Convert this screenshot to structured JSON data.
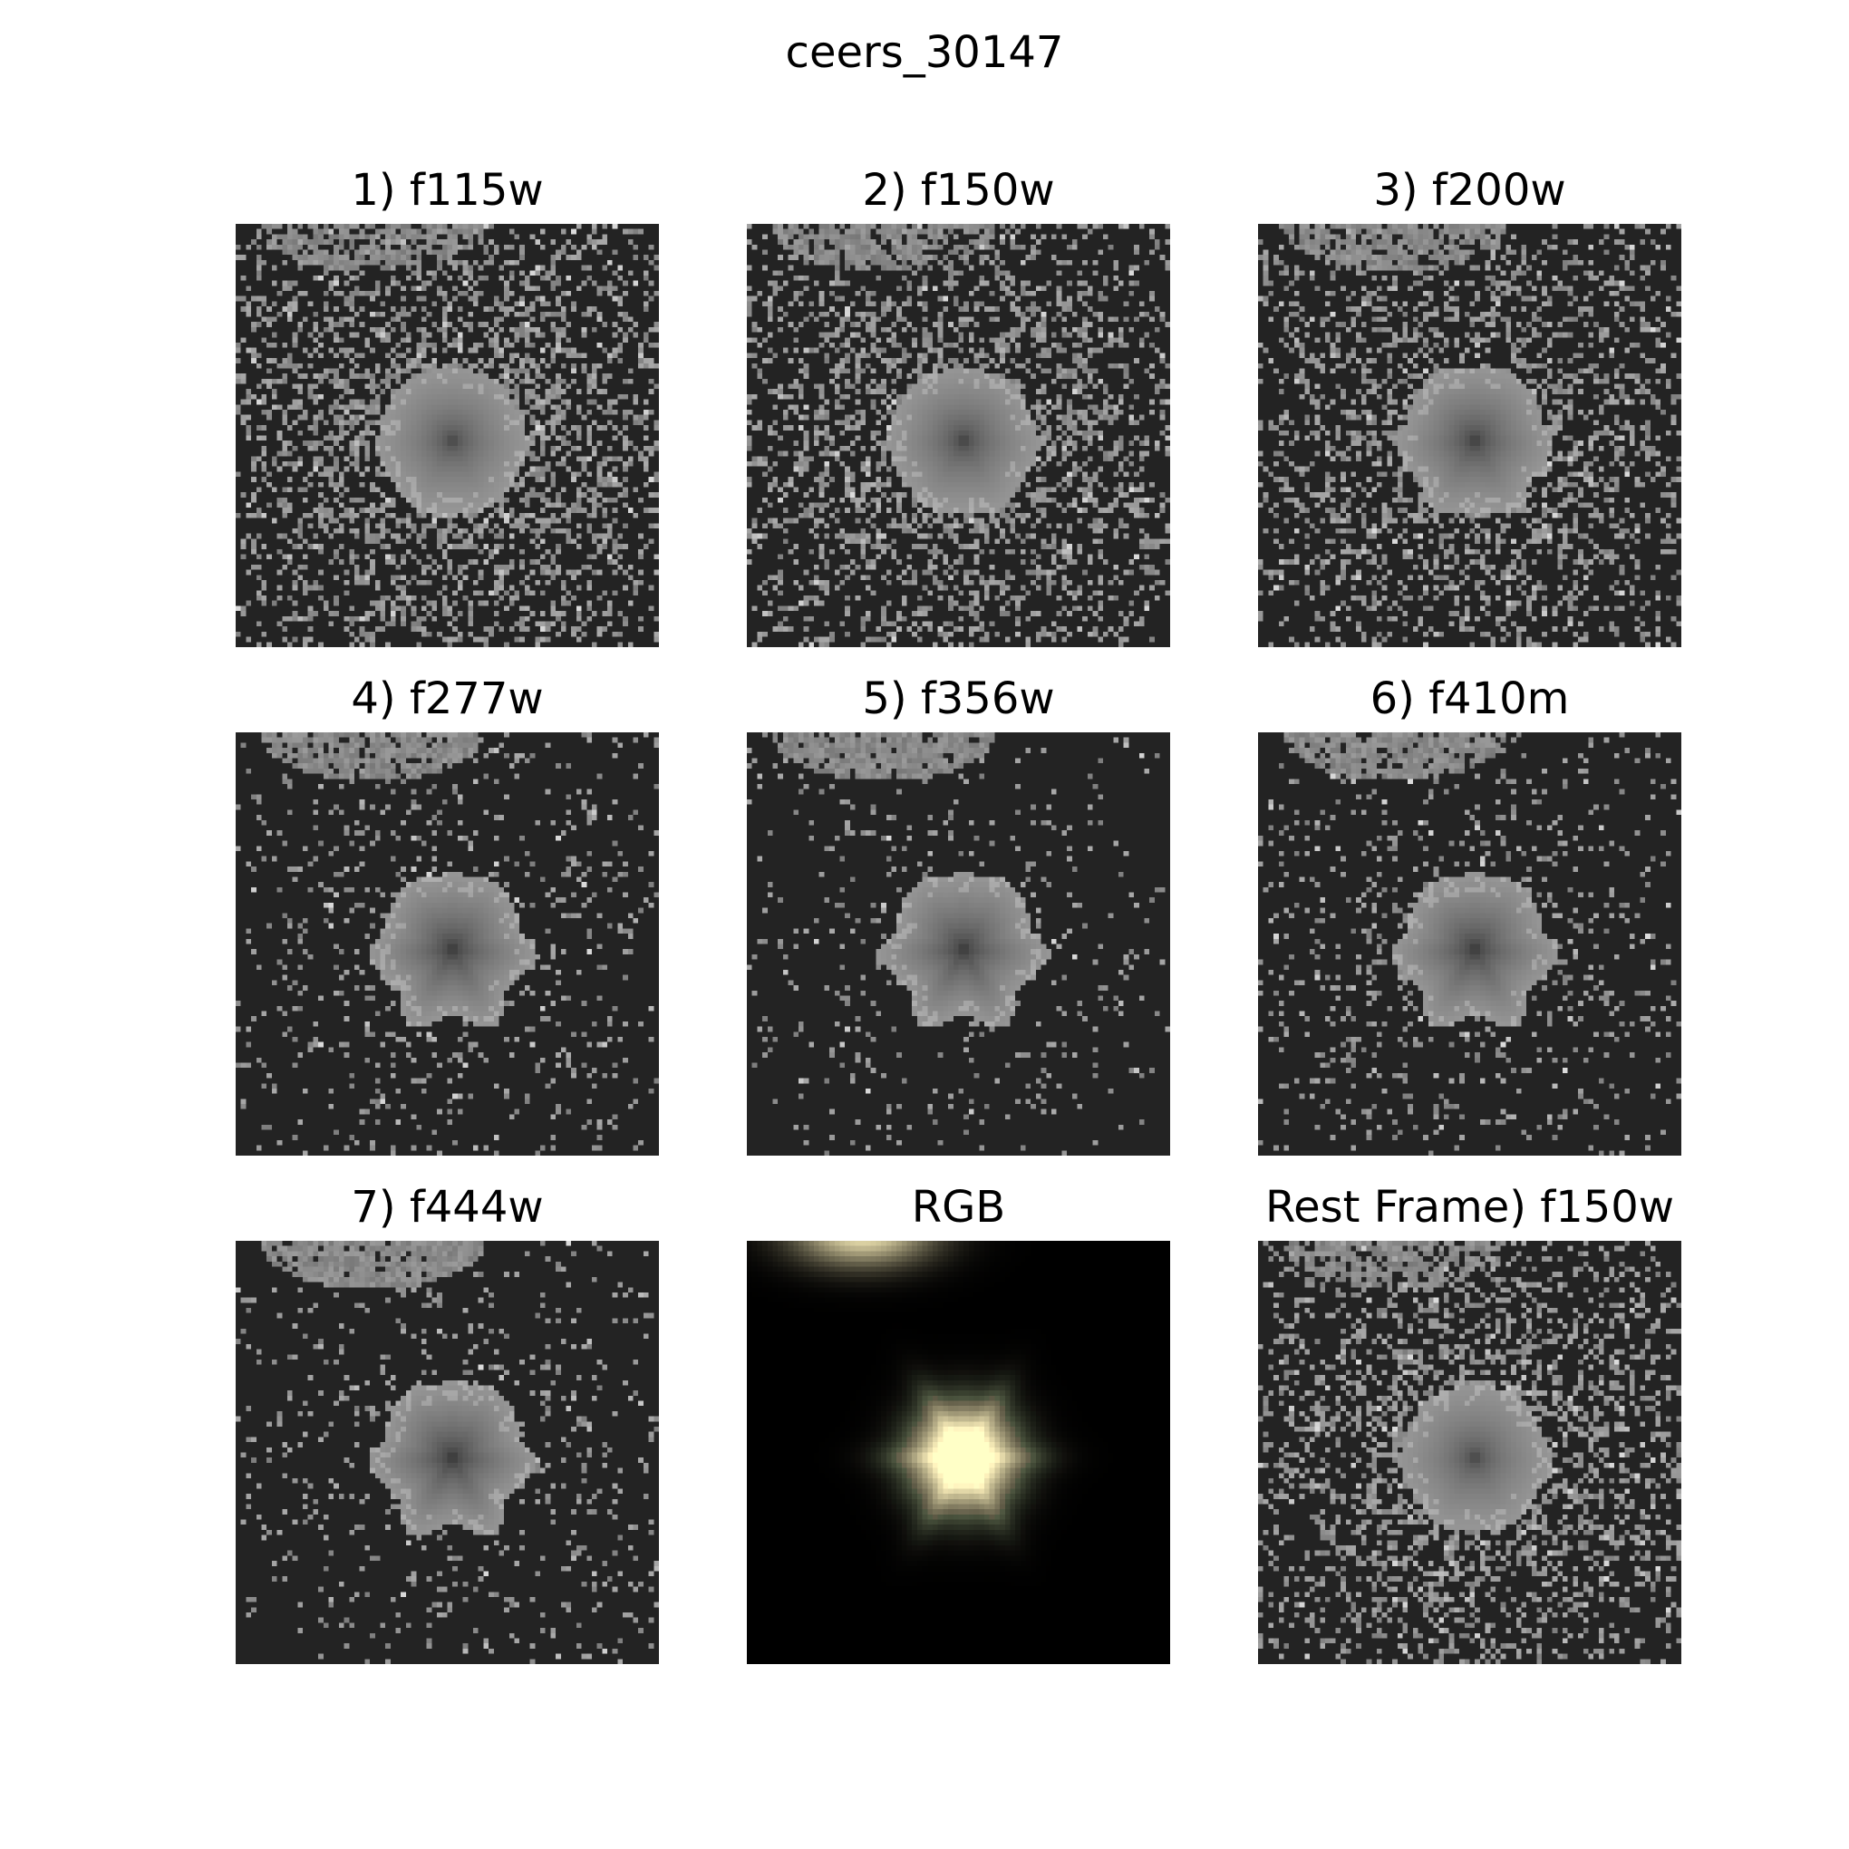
{
  "figure": {
    "title": "ceers_30147"
  },
  "panels": [
    {
      "label": "1) f115w",
      "kind": "band",
      "noise": 0.48,
      "core": 0.3,
      "spikes": 0.2,
      "companion": 0.25
    },
    {
      "label": "2) f150w",
      "kind": "band",
      "noise": 0.45,
      "core": 0.33,
      "spikes": 0.25,
      "companion": 0.35
    },
    {
      "label": "3) f200w",
      "kind": "band",
      "noise": 0.4,
      "core": 0.36,
      "spikes": 0.35,
      "companion": 0.45
    },
    {
      "label": "4) f277w",
      "kind": "band",
      "noise": 0.14,
      "core": 0.4,
      "spikes": 0.7,
      "companion": 0.75
    },
    {
      "label": "5) f356w",
      "kind": "band",
      "noise": 0.09,
      "core": 0.4,
      "spikes": 0.8,
      "companion": 0.8
    },
    {
      "label": "6) f410m",
      "kind": "band",
      "noise": 0.16,
      "core": 0.4,
      "spikes": 0.7,
      "companion": 0.7
    },
    {
      "label": "7) f444w",
      "kind": "band",
      "noise": 0.12,
      "core": 0.42,
      "spikes": 0.75,
      "companion": 0.8
    },
    {
      "label": "RGB",
      "kind": "rgb"
    },
    {
      "label": "Rest Frame) f150w",
      "kind": "band",
      "noise": 0.45,
      "core": 0.3,
      "spikes": 0.2,
      "companion": 0.3
    }
  ],
  "colors": {
    "background": "#232323",
    "rgb_background": "#000000"
  }
}
